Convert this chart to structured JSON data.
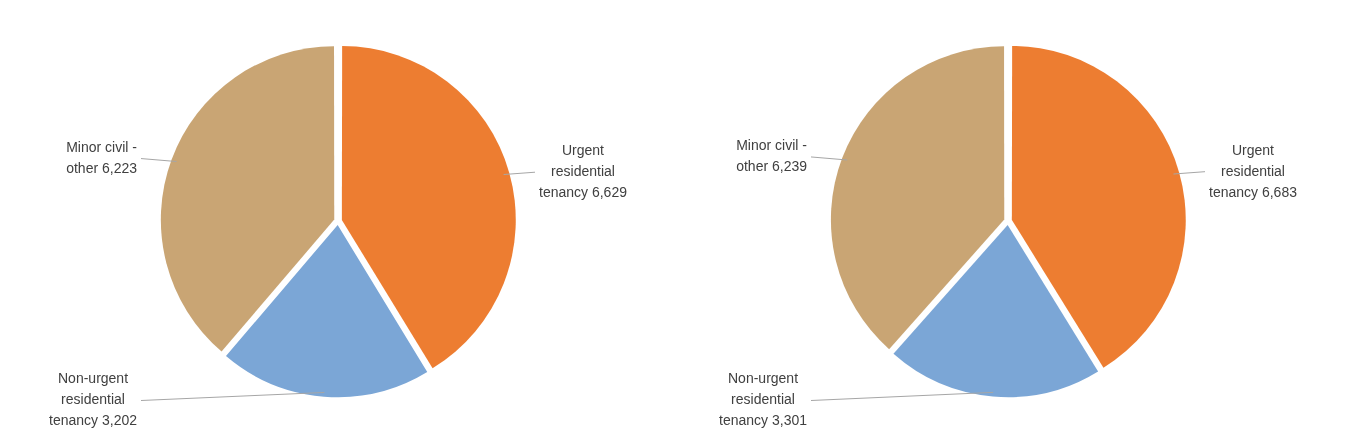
{
  "chart_data": [
    {
      "type": "pie",
      "categories": [
        "Urgent residential tenancy",
        "Non-urgent residential tenancy",
        "Minor civil - other"
      ],
      "values": [
        6629,
        3202,
        6223
      ],
      "colors": [
        "#ed7d31",
        "#7ba6d6",
        "#c9a574"
      ],
      "value_labels": [
        "6,629",
        "3,202",
        "6,223"
      ]
    },
    {
      "type": "pie",
      "categories": [
        "Urgent residential tenancy",
        "Non-urgent residential tenancy",
        "Minor civil - other"
      ],
      "values": [
        6683,
        3301,
        6239
      ],
      "colors": [
        "#ed7d31",
        "#7ba6d6",
        "#c9a574"
      ],
      "value_labels": [
        "6,683",
        "3,301",
        "6,239"
      ]
    }
  ]
}
